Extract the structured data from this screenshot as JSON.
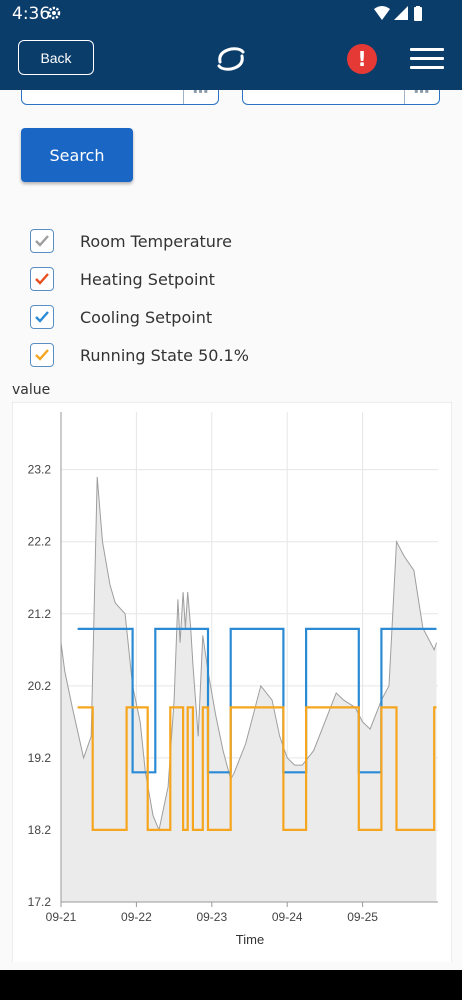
{
  "status_bar": {
    "time": "4:36",
    "icons": [
      "gear-icon",
      "wifi-icon",
      "signal-icon",
      "battery-icon"
    ]
  },
  "app_bar": {
    "back_label": "Back",
    "alert_label": "!",
    "icons": [
      "logo-icon",
      "alert-icon",
      "hamburger-menu-icon"
    ]
  },
  "search": {
    "button_label": "Search"
  },
  "legend": [
    {
      "label": "Room Temperature",
      "color": "#9e9e9e",
      "checked": true
    },
    {
      "label": "Heating Setpoint",
      "color": "#e8501e",
      "checked": true
    },
    {
      "label": "Cooling Setpoint",
      "color": "#2b8ad4",
      "checked": true
    },
    {
      "label": "Running State 50.1%",
      "color": "#f5a51e",
      "checked": true
    }
  ],
  "chart_data": {
    "type": "line",
    "ylabel": "value",
    "xlabel": "Time",
    "ylim": [
      17.2,
      24.0
    ],
    "xlim": [
      0,
      5.0
    ],
    "yticks": [
      17.2,
      18.2,
      19.2,
      20.2,
      21.2,
      22.2,
      23.2
    ],
    "xticks": [
      {
        "x": 0,
        "label": "09-21"
      },
      {
        "x": 1,
        "label": "09-22"
      },
      {
        "x": 2,
        "label": "09-23"
      },
      {
        "x": 3,
        "label": "09-24"
      },
      {
        "x": 4,
        "label": "09-25"
      }
    ],
    "grid": true,
    "series": [
      {
        "name": "Room Temperature",
        "color": "#9e9e9e",
        "fill": "#ebebeb",
        "points": [
          [
            0,
            20.8
          ],
          [
            0.05,
            20.4
          ],
          [
            0.15,
            19.9
          ],
          [
            0.3,
            19.2
          ],
          [
            0.4,
            19.5
          ],
          [
            0.48,
            23.1
          ],
          [
            0.55,
            22.2
          ],
          [
            0.65,
            21.6
          ],
          [
            0.72,
            21.35
          ],
          [
            0.85,
            21.2
          ],
          [
            0.95,
            20.2
          ],
          [
            1.05,
            19.7
          ],
          [
            1.12,
            19.0
          ],
          [
            1.22,
            18.4
          ],
          [
            1.3,
            18.2
          ],
          [
            1.42,
            18.8
          ],
          [
            1.5,
            20.0
          ],
          [
            1.55,
            21.4
          ],
          [
            1.58,
            20.8
          ],
          [
            1.62,
            21.5
          ],
          [
            1.65,
            21.0
          ],
          [
            1.68,
            21.5
          ],
          [
            1.72,
            21.0
          ],
          [
            1.75,
            20.5
          ],
          [
            1.82,
            19.5
          ],
          [
            1.88,
            20.9
          ],
          [
            1.95,
            20.4
          ],
          [
            2.05,
            19.8
          ],
          [
            2.15,
            19.3
          ],
          [
            2.25,
            18.9
          ],
          [
            2.3,
            19.0
          ],
          [
            2.45,
            19.4
          ],
          [
            2.55,
            19.8
          ],
          [
            2.65,
            20.2
          ],
          [
            2.8,
            20.0
          ],
          [
            2.9,
            19.5
          ],
          [
            3.0,
            19.2
          ],
          [
            3.1,
            19.1
          ],
          [
            3.2,
            19.1
          ],
          [
            3.35,
            19.3
          ],
          [
            3.5,
            19.7
          ],
          [
            3.65,
            20.1
          ],
          [
            3.75,
            20.0
          ],
          [
            3.9,
            19.9
          ],
          [
            4.0,
            19.7
          ],
          [
            4.1,
            19.6
          ],
          [
            4.25,
            20.0
          ],
          [
            4.35,
            20.2
          ],
          [
            4.45,
            22.2
          ],
          [
            4.55,
            22.0
          ],
          [
            4.68,
            21.8
          ],
          [
            4.8,
            21.0
          ],
          [
            4.9,
            20.8
          ],
          [
            4.95,
            20.7
          ],
          [
            4.98,
            20.8
          ]
        ]
      },
      {
        "name": "Cooling Setpoint",
        "color": "#2b8ad4",
        "points": [
          [
            0.22,
            20.99
          ],
          [
            0.95,
            20.99
          ],
          [
            0.95,
            19.0
          ],
          [
            1.25,
            19.0
          ],
          [
            1.25,
            20.99
          ],
          [
            1.95,
            20.99
          ],
          [
            1.95,
            19.0
          ],
          [
            2.25,
            19.0
          ],
          [
            2.25,
            20.99
          ],
          [
            2.95,
            20.99
          ],
          [
            2.95,
            19.0
          ],
          [
            3.25,
            19.0
          ],
          [
            3.25,
            20.99
          ],
          [
            3.95,
            20.99
          ],
          [
            3.95,
            19.0
          ],
          [
            4.25,
            19.0
          ],
          [
            4.25,
            20.99
          ],
          [
            4.98,
            20.99
          ]
        ]
      },
      {
        "name": "Running State 50.1%",
        "color": "#f5a51e",
        "points": [
          [
            0.22,
            19.9
          ],
          [
            0.42,
            19.9
          ],
          [
            0.42,
            18.2
          ],
          [
            0.87,
            18.2
          ],
          [
            0.87,
            19.9
          ],
          [
            1.15,
            19.9
          ],
          [
            1.15,
            18.2
          ],
          [
            1.45,
            18.2
          ],
          [
            1.45,
            19.9
          ],
          [
            1.62,
            19.9
          ],
          [
            1.62,
            18.2
          ],
          [
            1.68,
            18.2
          ],
          [
            1.68,
            19.9
          ],
          [
            1.75,
            19.9
          ],
          [
            1.75,
            18.2
          ],
          [
            1.88,
            18.2
          ],
          [
            1.88,
            19.9
          ],
          [
            1.95,
            19.9
          ],
          [
            1.95,
            18.2
          ],
          [
            2.25,
            18.2
          ],
          [
            2.25,
            19.9
          ],
          [
            2.95,
            19.9
          ],
          [
            2.95,
            18.2
          ],
          [
            3.25,
            18.2
          ],
          [
            3.25,
            19.9
          ],
          [
            3.95,
            19.9
          ],
          [
            3.95,
            18.2
          ],
          [
            4.25,
            18.2
          ],
          [
            4.25,
            19.9
          ],
          [
            4.45,
            19.9
          ],
          [
            4.45,
            18.2
          ],
          [
            4.95,
            18.2
          ],
          [
            4.95,
            19.9
          ],
          [
            4.98,
            19.9
          ]
        ]
      }
    ]
  }
}
